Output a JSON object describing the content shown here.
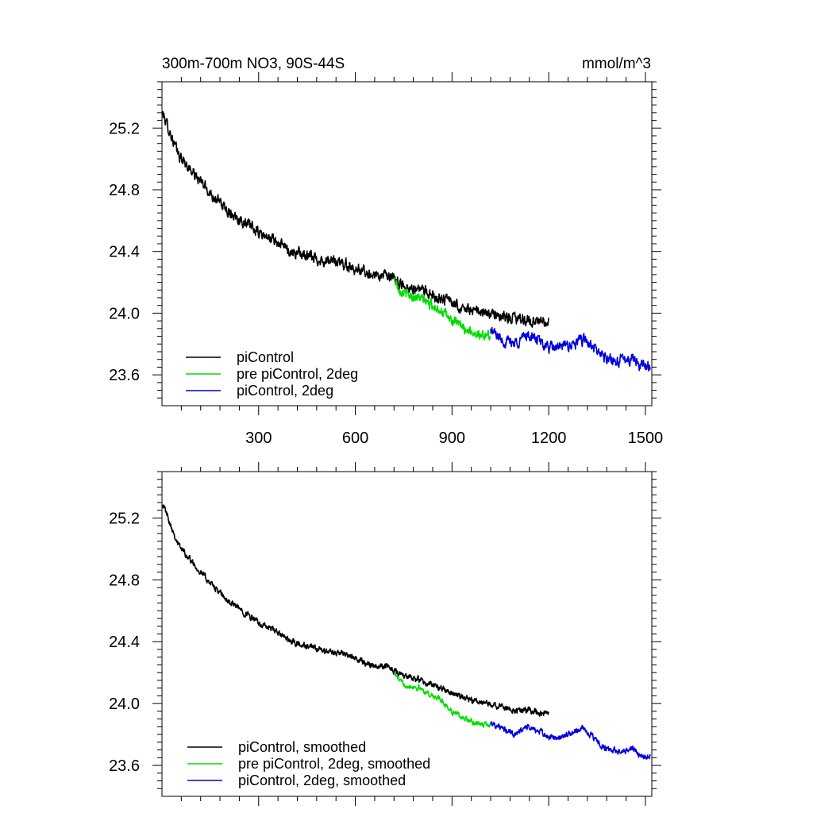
{
  "chart_data": [
    {
      "type": "line",
      "title": "300m-700m NO3, 90S-44S",
      "units": "mmol/m^3",
      "xlim": [
        0,
        1520
      ],
      "ylim": [
        23.4,
        25.5
      ],
      "xticks": [
        300,
        600,
        900,
        1200,
        1500
      ],
      "xtick_labels": [
        "300",
        "600",
        "900",
        "1200",
        "1500"
      ],
      "yticks": [
        23.6,
        24.0,
        24.4,
        24.8,
        25.2
      ],
      "ytick_labels": [
        "23.6",
        "24.0",
        "24.4",
        "24.8",
        "25.2"
      ],
      "legend_position": "bottom-left",
      "series": [
        {
          "name": "piControl",
          "color": "#000000",
          "noise": 0.028,
          "points": [
            [
              1,
              25.3
            ],
            [
              20,
              25.2
            ],
            [
              50,
              25.03
            ],
            [
              100,
              24.9
            ],
            [
              150,
              24.78
            ],
            [
              200,
              24.67
            ],
            [
              250,
              24.6
            ],
            [
              300,
              24.52
            ],
            [
              350,
              24.47
            ],
            [
              400,
              24.4
            ],
            [
              450,
              24.37
            ],
            [
              500,
              24.34
            ],
            [
              550,
              24.33
            ],
            [
              600,
              24.29
            ],
            [
              650,
              24.25
            ],
            [
              700,
              24.24
            ],
            [
              750,
              24.18
            ],
            [
              800,
              24.15
            ],
            [
              850,
              24.11
            ],
            [
              900,
              24.07
            ],
            [
              950,
              24.02
            ],
            [
              1000,
              24.0
            ],
            [
              1050,
              23.98
            ],
            [
              1100,
              23.96
            ],
            [
              1150,
              23.95
            ],
            [
              1200,
              23.93
            ]
          ]
        },
        {
          "name": "pre piControl, 2deg",
          "color": "#00dd00",
          "noise": 0.025,
          "points": [
            [
              720,
              24.22
            ],
            [
              740,
              24.15
            ],
            [
              760,
              24.12
            ],
            [
              800,
              24.1
            ],
            [
              830,
              24.06
            ],
            [
              860,
              24.03
            ],
            [
              900,
              23.95
            ],
            [
              950,
              23.89
            ],
            [
              1000,
              23.85
            ],
            [
              1020,
              23.86
            ]
          ]
        },
        {
          "name": "piControl, 2deg",
          "color": "#0000dd",
          "noise": 0.028,
          "points": [
            [
              1020,
              23.89
            ],
            [
              1060,
              23.82
            ],
            [
              1100,
              23.81
            ],
            [
              1130,
              23.86
            ],
            [
              1170,
              23.82
            ],
            [
              1200,
              23.77
            ],
            [
              1240,
              23.78
            ],
            [
              1280,
              23.8
            ],
            [
              1310,
              23.83
            ],
            [
              1340,
              23.77
            ],
            [
              1380,
              23.7
            ],
            [
              1420,
              23.69
            ],
            [
              1460,
              23.71
            ],
            [
              1490,
              23.66
            ],
            [
              1515,
              23.66
            ]
          ]
        }
      ]
    },
    {
      "type": "line",
      "title": "",
      "xlim": [
        0,
        1520
      ],
      "ylim": [
        23.4,
        25.5
      ],
      "xticks": [
        300,
        600,
        900,
        1200,
        1500
      ],
      "yticks": [
        23.6,
        24.0,
        24.4,
        24.8,
        25.2
      ],
      "ytick_labels": [
        "23.6",
        "24.0",
        "24.4",
        "24.8",
        "25.2"
      ],
      "legend_position": "bottom-left",
      "series": [
        {
          "name": "piControl, smoothed",
          "color": "#000000",
          "noise": 0.016,
          "points": [
            [
              1,
              25.3
            ],
            [
              20,
              25.2
            ],
            [
              50,
              25.03
            ],
            [
              100,
              24.9
            ],
            [
              150,
              24.78
            ],
            [
              200,
              24.67
            ],
            [
              250,
              24.6
            ],
            [
              300,
              24.52
            ],
            [
              350,
              24.47
            ],
            [
              400,
              24.4
            ],
            [
              450,
              24.37
            ],
            [
              500,
              24.34
            ],
            [
              550,
              24.33
            ],
            [
              600,
              24.29
            ],
            [
              650,
              24.25
            ],
            [
              700,
              24.24
            ],
            [
              750,
              24.18
            ],
            [
              800,
              24.15
            ],
            [
              850,
              24.11
            ],
            [
              900,
              24.07
            ],
            [
              950,
              24.02
            ],
            [
              1000,
              24.0
            ],
            [
              1050,
              23.98
            ],
            [
              1100,
              23.96
            ],
            [
              1150,
              23.95
            ],
            [
              1200,
              23.93
            ]
          ]
        },
        {
          "name": "pre piControl, 2deg, smoothed",
          "color": "#00dd00",
          "noise": 0.014,
          "points": [
            [
              720,
              24.2
            ],
            [
              740,
              24.14
            ],
            [
              760,
              24.12
            ],
            [
              800,
              24.1
            ],
            [
              830,
              24.06
            ],
            [
              860,
              24.03
            ],
            [
              900,
              23.95
            ],
            [
              950,
              23.89
            ],
            [
              1000,
              23.86
            ],
            [
              1020,
              23.86
            ]
          ]
        },
        {
          "name": "piControl, 2deg, smoothed",
          "color": "#0000dd",
          "noise": 0.016,
          "points": [
            [
              1020,
              23.88
            ],
            [
              1060,
              23.83
            ],
            [
              1100,
              23.8
            ],
            [
              1130,
              23.85
            ],
            [
              1170,
              23.82
            ],
            [
              1200,
              23.78
            ],
            [
              1240,
              23.78
            ],
            [
              1280,
              23.82
            ],
            [
              1310,
              23.84
            ],
            [
              1340,
              23.77
            ],
            [
              1380,
              23.7
            ],
            [
              1420,
              23.69
            ],
            [
              1460,
              23.71
            ],
            [
              1490,
              23.66
            ],
            [
              1515,
              23.66
            ]
          ]
        }
      ]
    }
  ]
}
